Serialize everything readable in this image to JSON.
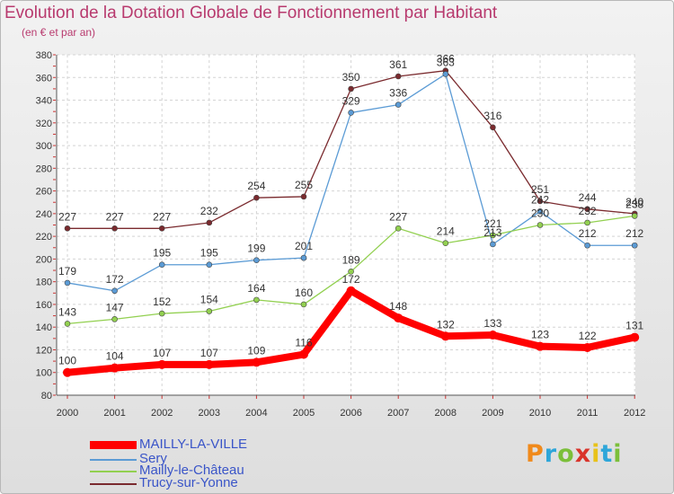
{
  "title": "Evolution de la Dotation Globale de Fonctionnement par Habitant",
  "subtitle": "(en € et par an)",
  "logo": {
    "letters": [
      "P",
      "r",
      "o",
      "x",
      "i",
      "t",
      "i"
    ],
    "colors": [
      "#f08a1c",
      "#2ea6d9",
      "#7bbf3a",
      "#d9342b",
      "#e8c21a",
      "#2ea6d9",
      "#7bbf3a"
    ]
  },
  "chart_data": {
    "type": "line",
    "x": [
      "2000",
      "2001",
      "2002",
      "2003",
      "2004",
      "2005",
      "2006",
      "2007",
      "2008",
      "2009",
      "2010",
      "2011",
      "2012"
    ],
    "ylim": [
      80,
      380
    ],
    "yticks": [
      80,
      100,
      120,
      140,
      160,
      180,
      200,
      220,
      240,
      260,
      280,
      300,
      320,
      340,
      360,
      380
    ],
    "grid": true,
    "legend_position": "bottom-left",
    "series": [
      {
        "name": "Trucy-sur-Yonne",
        "color": "#7a2a2e",
        "values": [
          227,
          227,
          227,
          232,
          254,
          255,
          350,
          361,
          366,
          316,
          251,
          244,
          240
        ]
      },
      {
        "name": "Sery",
        "color": "#5b9bd5",
        "values": [
          179,
          172,
          195,
          195,
          199,
          201,
          329,
          336,
          363,
          213,
          242,
          212,
          212
        ]
      },
      {
        "name": "Mailly-le-Château",
        "color": "#92d050",
        "values": [
          143,
          147,
          152,
          154,
          164,
          160,
          189,
          227,
          214,
          221,
          230,
          232,
          238
        ]
      },
      {
        "name": "MAILLY-LA-VILLE",
        "color": "#ff0000",
        "values": [
          100,
          104,
          107,
          107,
          109,
          116,
          172,
          148,
          132,
          133,
          123,
          122,
          131
        ]
      }
    ]
  },
  "legend_order": [
    3,
    1,
    2,
    0
  ]
}
